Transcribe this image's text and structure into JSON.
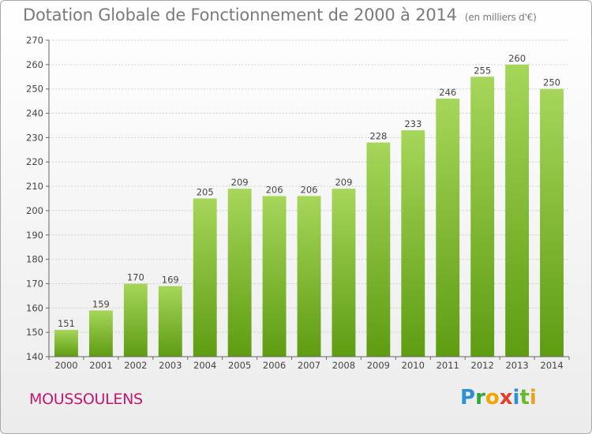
{
  "title": "Dotation Globale de Fonctionnement de 2000 à 2014",
  "subtitle": "(en milliers d'€)",
  "commune": "MOUSSOULENS",
  "logo_text": "Proxiti",
  "colors": {
    "bar_top": "#a6d65a",
    "bar_bottom": "#5e9c12",
    "commune": "#c0186e",
    "title": "#7a7a7a"
  },
  "chart_data": {
    "type": "bar",
    "categories": [
      "2000",
      "2001",
      "2002",
      "2003",
      "2004",
      "2005",
      "2006",
      "2007",
      "2008",
      "2009",
      "2010",
      "2011",
      "2012",
      "2013",
      "2014"
    ],
    "values": [
      151,
      159,
      170,
      169,
      205,
      209,
      206,
      206,
      209,
      228,
      233,
      246,
      255,
      260,
      250
    ],
    "ylim": [
      140,
      270
    ],
    "yticks": [
      140,
      150,
      160,
      170,
      180,
      190,
      200,
      210,
      220,
      230,
      240,
      250,
      260,
      270
    ],
    "grid": true,
    "title": "Dotation Globale de Fonctionnement de 2000 à 2014",
    "subtitle": "(en milliers d'€)",
    "xlabel": "",
    "ylabel": ""
  }
}
